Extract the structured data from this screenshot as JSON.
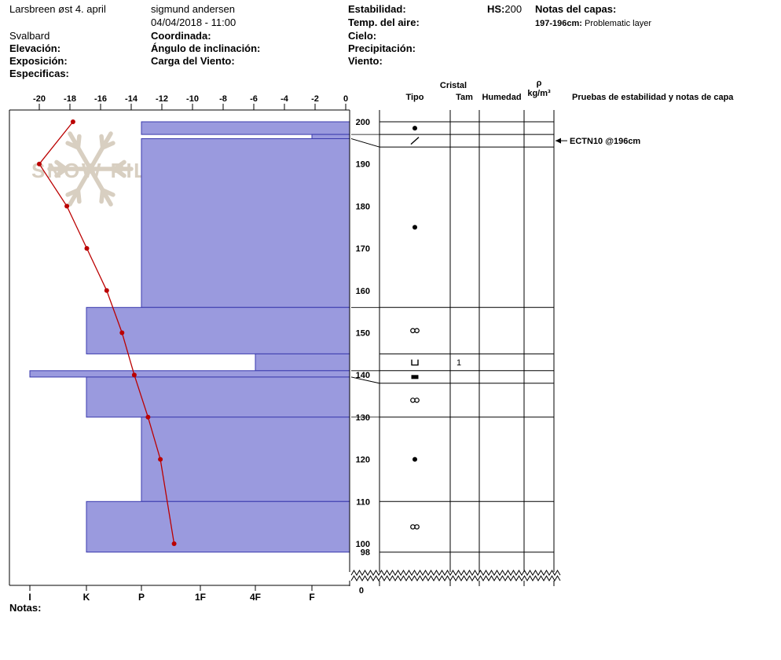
{
  "watermark": "SNOW PILOT",
  "header": {
    "title": "Larsbreen øst 4. april",
    "region": "Svalbard",
    "elevation_label": "Elevación:",
    "aspect_label": "Exposición:",
    "specifics_label": "Especificas:",
    "observer": "sigmund andersen",
    "datetime": "04/04/2018 - 11:00",
    "coordinates_label": "Coordinada:",
    "incline_label": "Ángulo de inclinación:",
    "wind_loading_label": "Carga del Viento:",
    "stability_label": "Estabilidad:",
    "air_temp_label": "Temp. del aire:",
    "sky_label": "Cielo:",
    "precipitation_label": "Precipitación:",
    "wind_label": "Viento:",
    "hs_label": "HS:",
    "hs_value": "200",
    "layer_notes_label": "Notas del capas:",
    "layer_note_depth": "197-196cm:",
    "layer_note_text": "Problematic layer"
  },
  "table_headers": {
    "crystal": "Cristal",
    "type": "Tipo",
    "size": "Tam",
    "moisture": "Humedad",
    "density_symbol": "ρ",
    "density_units": "kg/m³",
    "stability": "Pruebas de estabilidad y notas de capa"
  },
  "footer": {
    "notes_label": "Notas:"
  },
  "chart_data": {
    "type": "snow-profile",
    "surface_depth_cm": 200,
    "pit_bottom_cm": 98,
    "ground_label": "0",
    "temp_axis_ticks": [
      -20,
      -18,
      -16,
      -14,
      -12,
      -10,
      -8,
      -6,
      -4,
      -2,
      0
    ],
    "hardness_ticks": [
      "I",
      "K",
      "P",
      "1F",
      "4F",
      "F"
    ],
    "depth_ticks": [
      200,
      190,
      180,
      170,
      160,
      150,
      140,
      130,
      120,
      110,
      100,
      98
    ],
    "temperature_profile": [
      {
        "depth_cm": 200,
        "temp_c": -17.8
      },
      {
        "depth_cm": 190,
        "temp_c": -20.0
      },
      {
        "depth_cm": 180,
        "temp_c": -18.2
      },
      {
        "depth_cm": 170,
        "temp_c": -16.9
      },
      {
        "depth_cm": 160,
        "temp_c": -15.6
      },
      {
        "depth_cm": 150,
        "temp_c": -14.6
      },
      {
        "depth_cm": 140,
        "temp_c": -13.8
      },
      {
        "depth_cm": 130,
        "temp_c": -12.9
      },
      {
        "depth_cm": 120,
        "temp_c": -12.1
      },
      {
        "depth_cm": 100,
        "temp_c": -11.2
      }
    ],
    "layers": [
      {
        "top_cm": 200,
        "bottom_cm": 197,
        "hardness": "P",
        "grain_symbol": "dot"
      },
      {
        "top_cm": 197,
        "bottom_cm": 196,
        "hardness": "F",
        "grain_symbol": "slash"
      },
      {
        "top_cm": 196,
        "bottom_cm": 156,
        "hardness": "P",
        "grain_symbol": "dot"
      },
      {
        "top_cm": 156,
        "bottom_cm": 145,
        "hardness": "K",
        "grain_symbol": "cluster"
      },
      {
        "top_cm": 145,
        "bottom_cm": 141,
        "hardness": "4F",
        "grain_symbol": "cup",
        "grain_size": "1"
      },
      {
        "top_cm": 141,
        "bottom_cm": 139.5,
        "hardness": "I",
        "grain_symbol": "ice"
      },
      {
        "top_cm": 139.5,
        "bottom_cm": 130,
        "hardness": "K",
        "grain_symbol": "cluster"
      },
      {
        "top_cm": 130,
        "bottom_cm": 110,
        "hardness": "P",
        "grain_symbol": "dot"
      },
      {
        "top_cm": 110,
        "bottom_cm": 98,
        "hardness": "K",
        "grain_symbol": "cluster"
      }
    ],
    "stability_tests": [
      {
        "label": "ECTN10 @196cm",
        "layer_index": 1
      }
    ],
    "colors": {
      "layer_fill": "#9a9ade",
      "layer_border": "#3a3aad",
      "temp_line": "#bb0000",
      "watermark": "#d8cfc1"
    }
  }
}
